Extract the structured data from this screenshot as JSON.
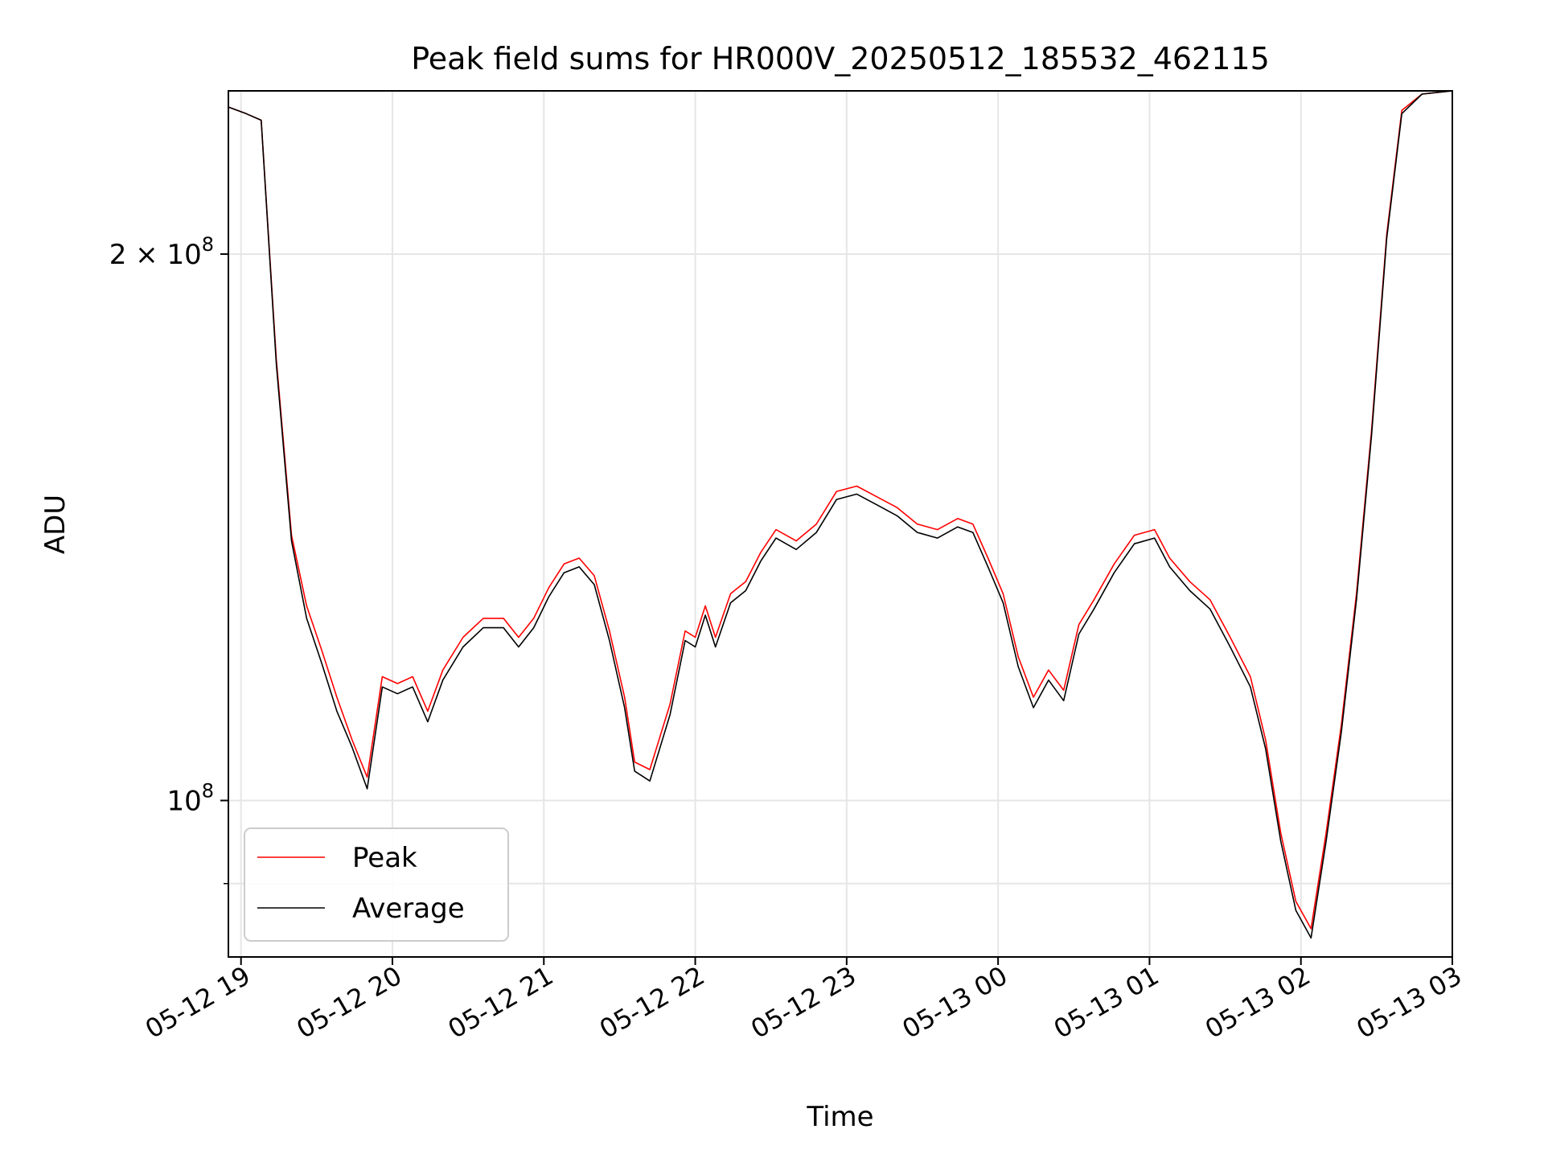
{
  "chart_data": {
    "type": "line",
    "title": "Peak field sums for HR000V_20250512_185532_462115",
    "xlabel": "Time",
    "ylabel": "ADU",
    "x_ticks": [
      "05-12 19",
      "05-12 20",
      "05-12 21",
      "05-12 22",
      "05-12 23",
      "05-13 00",
      "05-13 01",
      "05-13 02",
      "05-13 03"
    ],
    "y_ticks": [
      {
        "value": 100000000,
        "base": "10",
        "exp": "8",
        "mult": ""
      },
      {
        "value": 200000000,
        "base": "10",
        "exp": "8",
        "mult": "2 × "
      }
    ],
    "y_minor_ticks": [
      90000000
    ],
    "ylim": [
      82000000,
      246000000
    ],
    "xlim": [
      "2025-05-12 18:55",
      "2025-05-13 03:00"
    ],
    "yscale": "log",
    "grid": true,
    "legend_position": "lower-left",
    "series": [
      {
        "name": "Peak",
        "color": "#ff0000",
        "points": [
          [
            "2025-05-12 18:55",
            241000000
          ],
          [
            "2025-05-12 19:02",
            239000000
          ],
          [
            "2025-05-12 19:08",
            237000000
          ],
          [
            "2025-05-12 19:14",
            175000000
          ],
          [
            "2025-05-12 19:20",
            140000000
          ],
          [
            "2025-05-12 19:26",
            128000000
          ],
          [
            "2025-05-12 19:32",
            121000000
          ],
          [
            "2025-05-12 19:38",
            114000000
          ],
          [
            "2025-05-12 19:44",
            108000000
          ],
          [
            "2025-05-12 19:50",
            103000000
          ],
          [
            "2025-05-12 19:56",
            117000000
          ],
          [
            "2025-05-12 20:02",
            116000000
          ],
          [
            "2025-05-12 20:08",
            117000000
          ],
          [
            "2025-05-12 20:14",
            112000000
          ],
          [
            "2025-05-12 20:20",
            118000000
          ],
          [
            "2025-05-12 20:28",
            123000000
          ],
          [
            "2025-05-12 20:36",
            126000000
          ],
          [
            "2025-05-12 20:44",
            126000000
          ],
          [
            "2025-05-12 20:50",
            123000000
          ],
          [
            "2025-05-12 20:56",
            126000000
          ],
          [
            "2025-05-12 21:02",
            131000000
          ],
          [
            "2025-05-12 21:08",
            135000000
          ],
          [
            "2025-05-12 21:14",
            136000000
          ],
          [
            "2025-05-12 21:20",
            133000000
          ],
          [
            "2025-05-12 21:26",
            124000000
          ],
          [
            "2025-05-12 21:32",
            114000000
          ],
          [
            "2025-05-12 21:36",
            105000000
          ],
          [
            "2025-05-12 21:42",
            104000000
          ],
          [
            "2025-05-12 21:50",
            113000000
          ],
          [
            "2025-05-12 21:56",
            124000000
          ],
          [
            "2025-05-12 22:00",
            123000000
          ],
          [
            "2025-05-12 22:04",
            128000000
          ],
          [
            "2025-05-12 22:08",
            123000000
          ],
          [
            "2025-05-12 22:14",
            130000000
          ],
          [
            "2025-05-12 22:20",
            132000000
          ],
          [
            "2025-05-12 22:26",
            137000000
          ],
          [
            "2025-05-12 22:32",
            141000000
          ],
          [
            "2025-05-12 22:40",
            139000000
          ],
          [
            "2025-05-12 22:48",
            142000000
          ],
          [
            "2025-05-12 22:56",
            148000000
          ],
          [
            "2025-05-12 23:04",
            149000000
          ],
          [
            "2025-05-12 23:12",
            147000000
          ],
          [
            "2025-05-12 23:20",
            145000000
          ],
          [
            "2025-05-12 23:28",
            142000000
          ],
          [
            "2025-05-12 23:36",
            141000000
          ],
          [
            "2025-05-12 23:44",
            143000000
          ],
          [
            "2025-05-12 23:50",
            142000000
          ],
          [
            "2025-05-12 23:56",
            136000000
          ],
          [
            "2025-05-13 00:02",
            130000000
          ],
          [
            "2025-05-13 00:08",
            120000000
          ],
          [
            "2025-05-13 00:14",
            114000000
          ],
          [
            "2025-05-13 00:20",
            118000000
          ],
          [
            "2025-05-13 00:26",
            115000000
          ],
          [
            "2025-05-13 00:32",
            125000000
          ],
          [
            "2025-05-13 00:38",
            129000000
          ],
          [
            "2025-05-13 00:46",
            135000000
          ],
          [
            "2025-05-13 00:54",
            140000000
          ],
          [
            "2025-05-13 01:02",
            141000000
          ],
          [
            "2025-05-13 01:08",
            136000000
          ],
          [
            "2025-05-13 01:16",
            132000000
          ],
          [
            "2025-05-13 01:24",
            129000000
          ],
          [
            "2025-05-13 01:32",
            123000000
          ],
          [
            "2025-05-13 01:40",
            117000000
          ],
          [
            "2025-05-13 01:46",
            108000000
          ],
          [
            "2025-05-13 01:52",
            96000000
          ],
          [
            "2025-05-13 01:58",
            88000000
          ],
          [
            "2025-05-13 02:04",
            85000000
          ],
          [
            "2025-05-13 02:10",
            96000000
          ],
          [
            "2025-05-13 02:16",
            110000000
          ],
          [
            "2025-05-13 02:22",
            130000000
          ],
          [
            "2025-05-13 02:28",
            160000000
          ],
          [
            "2025-05-13 02:34",
            205000000
          ],
          [
            "2025-05-13 02:40",
            240000000
          ],
          [
            "2025-05-13 02:48",
            245000000
          ],
          [
            "2025-05-13 03:00",
            246000000
          ]
        ]
      },
      {
        "name": "Average",
        "color": "#000000",
        "points": [
          [
            "2025-05-12 18:55",
            241000000
          ],
          [
            "2025-05-12 19:02",
            239000000
          ],
          [
            "2025-05-12 19:08",
            237000000
          ],
          [
            "2025-05-12 19:14",
            174000000
          ],
          [
            "2025-05-12 19:20",
            139000000
          ],
          [
            "2025-05-12 19:26",
            126000000
          ],
          [
            "2025-05-12 19:32",
            119000000
          ],
          [
            "2025-05-12 19:38",
            112000000
          ],
          [
            "2025-05-12 19:44",
            107000000
          ],
          [
            "2025-05-12 19:50",
            101500000
          ],
          [
            "2025-05-12 19:56",
            115500000
          ],
          [
            "2025-05-12 20:02",
            114500000
          ],
          [
            "2025-05-12 20:08",
            115500000
          ],
          [
            "2025-05-12 20:14",
            110500000
          ],
          [
            "2025-05-12 20:20",
            116500000
          ],
          [
            "2025-05-12 20:28",
            121500000
          ],
          [
            "2025-05-12 20:36",
            124500000
          ],
          [
            "2025-05-12 20:44",
            124500000
          ],
          [
            "2025-05-12 20:50",
            121500000
          ],
          [
            "2025-05-12 20:56",
            124500000
          ],
          [
            "2025-05-12 21:02",
            129500000
          ],
          [
            "2025-05-12 21:08",
            133500000
          ],
          [
            "2025-05-12 21:14",
            134500000
          ],
          [
            "2025-05-12 21:20",
            131500000
          ],
          [
            "2025-05-12 21:26",
            122500000
          ],
          [
            "2025-05-12 21:32",
            112500000
          ],
          [
            "2025-05-12 21:36",
            103800000
          ],
          [
            "2025-05-12 21:42",
            102500000
          ],
          [
            "2025-05-12 21:50",
            111500000
          ],
          [
            "2025-05-12 21:56",
            122500000
          ],
          [
            "2025-05-12 22:00",
            121500000
          ],
          [
            "2025-05-12 22:04",
            126500000
          ],
          [
            "2025-05-12 22:08",
            121500000
          ],
          [
            "2025-05-12 22:14",
            128500000
          ],
          [
            "2025-05-12 22:20",
            130500000
          ],
          [
            "2025-05-12 22:26",
            135500000
          ],
          [
            "2025-05-12 22:32",
            139500000
          ],
          [
            "2025-05-12 22:40",
            137500000
          ],
          [
            "2025-05-12 22:48",
            140500000
          ],
          [
            "2025-05-12 22:56",
            146500000
          ],
          [
            "2025-05-12 23:04",
            147500000
          ],
          [
            "2025-05-12 23:12",
            145500000
          ],
          [
            "2025-05-12 23:20",
            143500000
          ],
          [
            "2025-05-12 23:28",
            140500000
          ],
          [
            "2025-05-12 23:36",
            139500000
          ],
          [
            "2025-05-12 23:44",
            141500000
          ],
          [
            "2025-05-12 23:50",
            140500000
          ],
          [
            "2025-05-12 23:56",
            134500000
          ],
          [
            "2025-05-13 00:02",
            128500000
          ],
          [
            "2025-05-13 00:08",
            118500000
          ],
          [
            "2025-05-13 00:14",
            112500000
          ],
          [
            "2025-05-13 00:20",
            116500000
          ],
          [
            "2025-05-13 00:26",
            113500000
          ],
          [
            "2025-05-13 00:32",
            123500000
          ],
          [
            "2025-05-13 00:38",
            127500000
          ],
          [
            "2025-05-13 00:46",
            133500000
          ],
          [
            "2025-05-13 00:54",
            138500000
          ],
          [
            "2025-05-13 01:02",
            139500000
          ],
          [
            "2025-05-13 01:08",
            134500000
          ],
          [
            "2025-05-13 01:16",
            130500000
          ],
          [
            "2025-05-13 01:24",
            127500000
          ],
          [
            "2025-05-13 01:32",
            121500000
          ],
          [
            "2025-05-13 01:40",
            115500000
          ],
          [
            "2025-05-13 01:46",
            106800000
          ],
          [
            "2025-05-13 01:52",
            95000000
          ],
          [
            "2025-05-13 01:58",
            87000000
          ],
          [
            "2025-05-13 02:04",
            84000000
          ],
          [
            "2025-05-13 02:10",
            95000000
          ],
          [
            "2025-05-13 02:16",
            109000000
          ],
          [
            "2025-05-13 02:22",
            129000000
          ],
          [
            "2025-05-13 02:28",
            159000000
          ],
          [
            "2025-05-13 02:34",
            204000000
          ],
          [
            "2025-05-13 02:40",
            239000000
          ],
          [
            "2025-05-13 02:48",
            245000000
          ],
          [
            "2025-05-13 03:00",
            246000000
          ]
        ]
      }
    ]
  }
}
